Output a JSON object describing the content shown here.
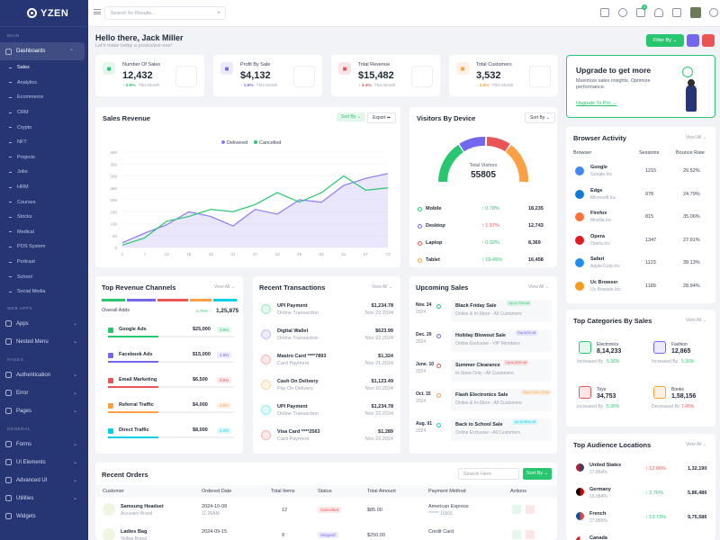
{
  "brand": {
    "name": "YZEN"
  },
  "sidebar": {
    "sections": [
      "MAIN",
      "WEB APPS",
      "PAGES",
      "GENERAL"
    ],
    "dashboards": "Dashboards",
    "subitems": [
      "Sales",
      "Analytics",
      "Ecommerce",
      "CRM",
      "Crypto",
      "NFT",
      "Projects",
      "Jobs",
      "HRM",
      "Courses",
      "Stocks",
      "Medical",
      "POS System",
      "Podcast",
      "School",
      "Social Media"
    ],
    "apps": "Apps",
    "nested": "Nested Menu",
    "pages": [
      "Authentication",
      "Error",
      "Pages"
    ],
    "general": [
      "Forms",
      "UI Elements",
      "Advanced UI",
      "Utilities",
      "Widgets"
    ]
  },
  "header": {
    "search_placeholder": "Search for Results...",
    "cart_count": "4"
  },
  "greeting": {
    "title": "Hello there, Jack Miller",
    "subtitle": "Let's make today a productive one!",
    "filter": "Filter By"
  },
  "stats": [
    {
      "label": "Number Of Sales",
      "value": "12,432",
      "trend": "↑ 2.5%",
      "period": "This Month",
      "color": "#28c76f",
      "bg": "#e3f7ec"
    },
    {
      "label": "Profit By Sale",
      "value": "$4,132",
      "trend": "↑ 1.5%",
      "period": "This Month",
      "color": "#7367f0",
      "bg": "#ecebfd"
    },
    {
      "label": "Total Revenue",
      "value": "$15,482",
      "trend": "↓ 3.4%",
      "period": "This Month",
      "color": "#ea5455",
      "bg": "#fce5e6"
    },
    {
      "label": "Total Customers",
      "value": "3,532",
      "trend": "↓ 4.5%",
      "period": "This Month",
      "color": "#ff9f43",
      "bg": "#fff0e1"
    }
  ],
  "upgrade": {
    "title": "Upgrade to get more",
    "text": "Maximize sales insights. Optimize performance.",
    "link": "Upgrade To Pro →"
  },
  "sales_revenue": {
    "title": "Sales Revenue",
    "sort": "Sort By",
    "export": "Export"
  },
  "chart_data": {
    "type": "line",
    "x": [
      1,
      7,
      13,
      19,
      25,
      31,
      37,
      43,
      49,
      55,
      61,
      67,
      73
    ],
    "ylim": [
      0,
      400
    ],
    "yticks": [
      0,
      50,
      100,
      150,
      200,
      250,
      300,
      350,
      400
    ],
    "series": [
      {
        "name": "Delivered",
        "color": "#8b7cf6",
        "values": [
          20,
          60,
          95,
          150,
          130,
          90,
          160,
          140,
          200,
          190,
          260,
          290,
          310
        ]
      },
      {
        "name": "Cancelled",
        "color": "#28c76f",
        "values": [
          10,
          40,
          110,
          130,
          160,
          150,
          180,
          230,
          190,
          230,
          300,
          240,
          250
        ]
      }
    ]
  },
  "visitors": {
    "title": "Visitors By Device",
    "sort": "Sort By",
    "total_label": "Total Visitors",
    "total": "55805",
    "rows": [
      {
        "name": "Mobile",
        "pct": "↑ 0.78%",
        "val": "18,235",
        "color": "#28c76f",
        "up": true
      },
      {
        "name": "Desktop",
        "pct": "↑ 1.57%",
        "val": "12,743",
        "color": "#7367f0",
        "up": false
      },
      {
        "name": "Laptop",
        "pct": "↑ 0.32%",
        "val": "8,369",
        "color": "#ea5455",
        "up": true
      },
      {
        "name": "Tablet",
        "pct": "↑ 19.45%",
        "val": "16,458",
        "color": "#ff9f43",
        "up": true
      }
    ]
  },
  "browser": {
    "title": "Browser Activity",
    "view": "View All",
    "cols": [
      "Browser",
      "Sessions",
      "Bounce Rate"
    ],
    "rows": [
      {
        "name": "Google",
        "site": "Google.Inc",
        "sessions": "1215",
        "rate": "29.52%",
        "color": "#4285f4"
      },
      {
        "name": "Edge",
        "site": "Microsoft.Inc",
        "sessions": "978",
        "rate": "24.79%",
        "color": "#0f7bd4"
      },
      {
        "name": "Firefox",
        "site": "Mozilla.Inc",
        "sessions": "815",
        "rate": "35.06%",
        "color": "#ff7139"
      },
      {
        "name": "Opera",
        "site": "Opera.Inc",
        "sessions": "1347",
        "rate": "27.91%",
        "color": "#e01b24"
      },
      {
        "name": "Safari",
        "site": "Apple Corp,Inc",
        "sessions": "1123",
        "rate": "39.13%",
        "color": "#1f8ef1"
      },
      {
        "name": "Uc Browser",
        "site": "Uc Browser.Inc",
        "sessions": "1189",
        "rate": "28.94%",
        "color": "#f59c1a"
      }
    ]
  },
  "channels": {
    "title": "Top Revenue Channels",
    "view": "View All",
    "overall_label": "Overall Adds",
    "overall_pct": "2.76% ↑",
    "overall_val": "1,25,875",
    "rows": [
      {
        "name": "Google Ads",
        "val": "$25,000",
        "pct": "3.6%",
        "color": "#28c76f"
      },
      {
        "name": "Facebook Ads",
        "val": "$15,000",
        "pct": "2.8%",
        "color": "#7367f0"
      },
      {
        "name": "Email Marketing",
        "val": "$6,500",
        "pct": "0.5%",
        "color": "#ea5455"
      },
      {
        "name": "Referral Traffic",
        "val": "$4,000",
        "pct": "3.8%",
        "color": "#ff9f43"
      },
      {
        "name": "Direct Traffic",
        "val": "$8,000",
        "pct": "4.0%",
        "color": "#00cfe8"
      }
    ]
  },
  "transactions": {
    "title": "Recent Transactions",
    "view": "View All",
    "rows": [
      {
        "name": "UPI Payment",
        "type": "Online Transaction",
        "amt": "$1,234.78",
        "date": "Nov 22,2024",
        "color": "#28c76f"
      },
      {
        "name": "Digital Wallet",
        "type": "Online Transaction",
        "amt": "$623.99",
        "date": "Nov 22,2024",
        "color": "#7367f0"
      },
      {
        "name": "Mastro Card ****7893",
        "type": "Card Payment",
        "amt": "$1,324",
        "date": "Nov 21,2024",
        "color": "#ea5455"
      },
      {
        "name": "Cash On Delivery",
        "type": "Pay On Delivery",
        "amt": "$1,123.49",
        "date": "Nov 20,2024",
        "color": "#ff9f43"
      },
      {
        "name": "UPI Payment",
        "type": "Online Transaction",
        "amt": "$1,234.78",
        "date": "Nov 22,2024",
        "color": "#00cfe8"
      },
      {
        "name": "Visa Card ****2563",
        "type": "Card Payment",
        "amt": "$1,289",
        "date": "Nov 22,2024",
        "color": "#ea5455"
      }
    ]
  },
  "upcoming": {
    "title": "Upcoming Sales",
    "view": "View All",
    "rows": [
      {
        "date": "Nov. 24",
        "year": "2024",
        "name": "Black Friday Sale",
        "tag": "Up to 70% off",
        "sub": "Online & In-Store - All Customers",
        "color": "#28c76f"
      },
      {
        "date": "Dec. 20",
        "year": "2024",
        "name": "Holiday Blowout Sale",
        "tag": "Flat 60% off",
        "sub": "Online Exclusive - VIP Members",
        "color": "#7367f0"
      },
      {
        "date": "June. 10",
        "year": "2024",
        "name": "Summer Clearance",
        "tag": "Up to 60% off",
        "sub": "In-Store Only - All Customers",
        "color": "#ea5455"
      },
      {
        "date": "Oct. 15",
        "year": "2024",
        "name": "Flash Electronics Sale",
        "tag": "Buy 1 Get 1 Free",
        "sub": "Online & In-Store - All Customers",
        "color": "#ff9f43"
      },
      {
        "date": "Aug. 01",
        "year": "2024",
        "name": "Back to School Sale",
        "tag": "Up to 30% off",
        "sub": "Online Exclusive - All Customers",
        "color": "#00cfe8"
      }
    ]
  },
  "categories": {
    "title": "Top Categories By Sales",
    "view": "View All",
    "items": [
      {
        "name": "Electronics",
        "val": "8,14,233",
        "trend_label": "Increased By",
        "trend": "5.36%",
        "color": "#28c76f",
        "bg": "#e3f7ec"
      },
      {
        "name": "Fashion",
        "val": "12,865",
        "trend_label": "Increased By",
        "trend": "5.36%",
        "color": "#7367f0",
        "bg": "#ecebfd"
      },
      {
        "name": "Toys",
        "val": "34,753",
        "trend_label": "Increased By",
        "trend": "5.36%",
        "color": "#ea5455",
        "bg": "#fce5e6"
      },
      {
        "name": "Books",
        "val": "1,58,156",
        "trend_label": "Decreased By",
        "trend": "7.45%",
        "color": "#ff9f43",
        "bg": "#fff0e1"
      }
    ]
  },
  "locations": {
    "title": "Top Audience Locations",
    "view": "View All",
    "rows": [
      {
        "name": "United States",
        "pct": "17.864%",
        "trend": "↑ 12.86%",
        "val": "1,32,190",
        "up": false
      },
      {
        "name": "Germany",
        "pct": "16.984%",
        "trend": "↑ 2.76%",
        "val": "5,86,486",
        "up": true
      },
      {
        "name": "French",
        "pct": "27.856%",
        "trend": "↑ 13.73%",
        "val": "9,75,586",
        "up": true
      },
      {
        "name": "Canada",
        "pct": "",
        "trend": "",
        "val": "",
        "up": true
      }
    ]
  },
  "orders": {
    "title": "Recent Orders",
    "search": "Search Here",
    "sort": "Sort By",
    "cols": [
      "Customer",
      "Ordered Date",
      "Total Items",
      "Status",
      "Total Amount",
      "Payment Method",
      "Actions"
    ],
    "rows": [
      {
        "product": "Samsung Headset",
        "brand": "Accusam Brand",
        "date": "2024-10-08",
        "time": "11:26AM",
        "items": "12",
        "status": "Cancelled",
        "amount": "$85.00",
        "method": "American Express",
        "card": "****** 10005"
      },
      {
        "product": "Ladies Bag",
        "brand": "Yellow Brand",
        "date": "2024-09-15",
        "time": "",
        "items": "9",
        "status": "Shipped",
        "amount": "$250.00",
        "method": "Credit Card",
        "card": ""
      }
    ]
  }
}
